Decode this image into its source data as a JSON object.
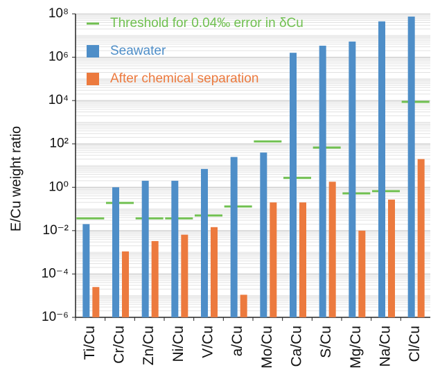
{
  "chart_data": {
    "type": "bar",
    "y_label": "E/Cu weight ratio",
    "categories": [
      "Ti/Cu",
      "Cr/Cu",
      "Zn/Cu",
      "Ni/Cu",
      "V/Cu",
      "a/Cu",
      "Mo/Cu",
      "Ca/Cu",
      "S/Cu",
      "Mg/Cu",
      "Na/Cu",
      "Cl/Cu"
    ],
    "series": [
      {
        "name": "Threshold for 0.04‰ error in δCu",
        "color": "#70c050",
        "style": "dash",
        "values": [
          0.037,
          0.19,
          0.037,
          0.037,
          0.05,
          0.13,
          130,
          2.7,
          68,
          0.52,
          0.66,
          8700
        ]
      },
      {
        "name": "Seawater",
        "color": "#4e8ec8",
        "style": "bar",
        "values": [
          0.02,
          1,
          2,
          2,
          7,
          25,
          40,
          1600000,
          3400000,
          5300000,
          45000000,
          75000000
        ]
      },
      {
        "name": "After chemical separation",
        "color": "#ec7a3e",
        "style": "bar",
        "values": [
          2.5e-05,
          0.0011,
          0.0033,
          0.0065,
          0.0145,
          1.1e-05,
          0.2,
          0.2,
          1.8,
          0.01,
          0.27,
          20
        ]
      }
    ],
    "log_scale": true,
    "ylim": [
      1e-06,
      100000000
    ],
    "yticks": [
      {
        "value": 1e-06,
        "label": "10⁻⁶"
      },
      {
        "value": 0.0001,
        "label": "10⁻⁴"
      },
      {
        "value": 0.01,
        "label": "10⁻²"
      },
      {
        "value": 1,
        "label": "10⁰"
      },
      {
        "value": 100,
        "label": "10²"
      },
      {
        "value": 10000,
        "label": "10⁴"
      },
      {
        "value": 1000000,
        "label": "10⁶"
      },
      {
        "value": 100000000,
        "label": "10⁸"
      }
    ],
    "grid": true,
    "minor_grid": true,
    "legend": "upper left"
  }
}
